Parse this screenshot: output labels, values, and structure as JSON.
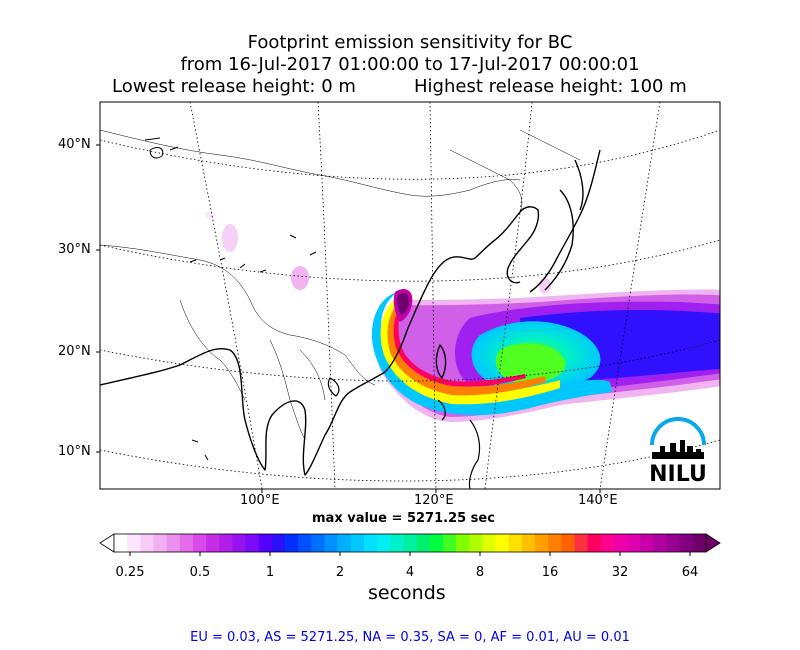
{
  "title": {
    "line1": "Footprint emission sensitivity for BC",
    "line2": "from 16-Jul-2017 01:00:00 to 17-Jul-2017 00:00:01",
    "lowest": "Lowest release height: 0 m",
    "highest": "Highest release height: 100 m"
  },
  "map": {
    "lat_labels": [
      "40°N",
      "30°N",
      "20°N",
      "10°N"
    ],
    "lon_labels": [
      "100°E",
      "120°E",
      "140°E"
    ],
    "max_value": "max value = 5271.25 sec",
    "logo_text": "NILU"
  },
  "colorbar": {
    "ticks": [
      "0.25",
      "0.5",
      "1",
      "2",
      "4",
      "8",
      "16",
      "32",
      "64"
    ],
    "unit": "seconds",
    "colors": [
      "#ffffff",
      "#fde6fd",
      "#f8ccf8",
      "#f2b0f2",
      "#ec90ee",
      "#e46ceb",
      "#d94ae8",
      "#c62ee6",
      "#b01ee8",
      "#9614f0",
      "#7a0af8",
      "#5500ff",
      "#2a10ff",
      "#0030ff",
      "#0050ff",
      "#0070ff",
      "#0090ff",
      "#00b0ff",
      "#00c8ff",
      "#00e0ff",
      "#00f0f0",
      "#00f0c8",
      "#00f0a0",
      "#00f070",
      "#00ff40",
      "#40ff20",
      "#80ff00",
      "#b0ff00",
      "#e0ff00",
      "#ffff00",
      "#ffe000",
      "#ffc000",
      "#ffa000",
      "#ff8000",
      "#ff6000",
      "#ff3040",
      "#ff0060",
      "#ff0090",
      "#f000a8",
      "#e000b0",
      "#c800a8",
      "#b000a0",
      "#980090",
      "#800080",
      "#70006a"
    ]
  },
  "regions": "EU = 0.03,  AS = 5271.25,  NA = 0.35,  SA = 0,  AF = 0.01,  AU = 0.01"
}
